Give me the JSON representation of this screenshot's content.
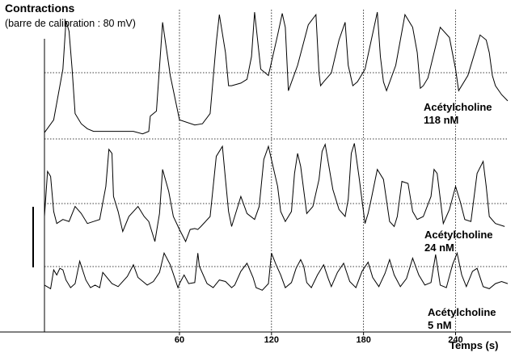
{
  "chart_data": {
    "type": "line",
    "title": "Contractions",
    "subtitle": "(barre de calibration : 80 mV)",
    "xlabel": "Temps (s)",
    "xlim": [
      -28,
      274
    ],
    "xticks": [
      60,
      120,
      180,
      240
    ],
    "grid": true,
    "series": [
      {
        "name": "Acétylcholine 118 nM",
        "label_lines": [
          "Acétylcholine",
          "118 nM"
        ],
        "x": [
          -28,
          -22,
          -16,
          -14,
          -12,
          -10,
          -8,
          -4,
          0,
          4,
          10,
          20,
          30,
          36,
          40,
          41,
          45,
          48,
          49,
          54,
          60,
          70,
          75,
          80,
          84,
          86,
          90,
          92,
          94,
          100,
          104,
          107,
          109,
          113,
          118,
          124,
          127,
          129,
          131,
          137,
          144,
          149,
          151,
          152,
          154,
          159,
          164,
          168,
          170,
          173,
          176,
          181,
          189,
          191,
          193,
          195,
          201,
          207,
          212,
          215,
          217,
          219,
          222,
          230,
          236,
          240,
          242,
          248,
          256,
          260,
          262,
          264,
          266,
          270,
          274
        ],
        "y": [
          0.05,
          0.15,
          0.55,
          0.93,
          0.85,
          0.55,
          0.2,
          0.12,
          0.08,
          0.06,
          0.06,
          0.06,
          0.06,
          0.04,
          0.06,
          0.18,
          0.22,
          0.74,
          0.92,
          0.5,
          0.15,
          0.11,
          0.12,
          0.2,
          0.76,
          0.98,
          0.68,
          0.42,
          0.42,
          0.44,
          0.47,
          0.65,
          1.0,
          0.55,
          0.5,
          0.82,
          0.99,
          0.88,
          0.38,
          0.58,
          0.9,
          0.98,
          0.52,
          0.42,
          0.45,
          0.52,
          0.78,
          0.92,
          0.58,
          0.42,
          0.45,
          0.55,
          1.0,
          0.65,
          0.45,
          0.38,
          0.58,
          0.98,
          0.88,
          0.68,
          0.4,
          0.42,
          0.48,
          0.88,
          0.8,
          0.55,
          0.38,
          0.5,
          0.82,
          0.78,
          0.68,
          0.5,
          0.42,
          0.35,
          0.3
        ]
      },
      {
        "name": "Acétylcholine 24 nM",
        "label_lines": [
          "Acétylcholine",
          "24 nM"
        ],
        "x": [
          -28,
          -26,
          -24,
          -22,
          -20,
          -16,
          -12,
          -8,
          -4,
          0,
          4,
          8,
          12,
          14,
          16,
          17,
          20,
          23,
          27,
          33,
          37,
          40,
          44,
          47,
          49,
          53,
          56,
          60,
          64,
          67,
          70,
          72,
          74,
          80,
          84,
          88,
          90,
          92,
          94,
          98,
          100,
          104,
          109,
          112,
          115,
          118,
          124,
          126,
          129,
          133,
          135,
          137,
          139,
          143,
          147,
          151,
          153,
          155,
          160,
          164,
          168,
          170,
          172,
          174,
          177,
          181,
          183,
          185,
          189,
          193,
          197,
          200,
          202,
          205,
          209,
          212,
          215,
          219,
          224,
          226,
          228,
          232,
          236,
          240,
          243,
          246,
          250,
          254,
          258,
          260,
          262,
          266,
          272
        ],
        "y": [
          0.25,
          0.7,
          0.65,
          0.3,
          0.18,
          0.22,
          0.2,
          0.35,
          0.28,
          0.18,
          0.2,
          0.22,
          0.55,
          0.92,
          0.88,
          0.45,
          0.3,
          0.1,
          0.25,
          0.35,
          0.25,
          0.2,
          0.0,
          0.28,
          0.72,
          0.5,
          0.25,
          0.12,
          0.0,
          0.12,
          0.13,
          0.12,
          0.15,
          0.25,
          0.85,
          0.95,
          0.62,
          0.3,
          0.15,
          0.35,
          0.45,
          0.28,
          0.22,
          0.35,
          0.82,
          0.95,
          0.55,
          0.3,
          0.2,
          0.3,
          0.68,
          0.88,
          0.75,
          0.28,
          0.35,
          0.62,
          0.9,
          0.97,
          0.52,
          0.32,
          0.25,
          0.42,
          0.88,
          0.98,
          0.65,
          0.18,
          0.28,
          0.42,
          0.72,
          0.62,
          0.2,
          0.15,
          0.25,
          0.6,
          0.58,
          0.3,
          0.22,
          0.25,
          0.45,
          0.72,
          0.68,
          0.18,
          0.32,
          0.55,
          0.4,
          0.22,
          0.2,
          0.68,
          0.8,
          0.55,
          0.25,
          0.18,
          0.15
        ]
      },
      {
        "name": "Acétylcholine 5 nM",
        "label_lines": [
          "Acétylcholine",
          "5 nM"
        ],
        "x": [
          -28,
          -24,
          -22,
          -20,
          -18,
          -16,
          -14,
          -11,
          -8,
          -5,
          -1,
          2,
          5,
          8,
          10,
          16,
          20,
          26,
          30,
          33,
          39,
          43,
          47,
          50,
          54,
          59,
          60,
          63,
          66,
          70,
          72,
          73,
          78,
          82,
          86,
          90,
          94,
          96,
          100,
          104,
          108,
          110,
          114,
          118,
          120,
          123,
          126,
          129,
          133,
          136,
          139,
          141,
          143,
          146,
          150,
          154,
          157,
          159,
          163,
          167,
          171,
          175,
          179,
          183,
          186,
          190,
          194,
          197,
          200,
          204,
          208,
          212,
          216,
          220,
          224,
          227,
          230,
          234,
          238,
          241,
          244,
          247,
          251,
          254,
          258,
          262,
          266,
          270,
          274
        ],
        "y": [
          0.35,
          0.28,
          0.65,
          0.55,
          0.68,
          0.65,
          0.45,
          0.3,
          0.38,
          0.82,
          0.45,
          0.3,
          0.35,
          0.3,
          0.6,
          0.38,
          0.32,
          0.52,
          0.75,
          0.5,
          0.35,
          0.42,
          0.6,
          0.98,
          0.75,
          0.3,
          0.38,
          0.55,
          0.38,
          0.4,
          0.98,
          0.72,
          0.38,
          0.3,
          0.45,
          0.42,
          0.3,
          0.35,
          0.62,
          0.78,
          0.5,
          0.3,
          0.25,
          0.38,
          0.98,
          0.75,
          0.55,
          0.3,
          0.4,
          0.68,
          0.85,
          0.72,
          0.4,
          0.3,
          0.55,
          0.75,
          0.48,
          0.32,
          0.6,
          0.78,
          0.42,
          0.3,
          0.62,
          0.8,
          0.5,
          0.32,
          0.58,
          0.85,
          0.55,
          0.32,
          0.48,
          0.88,
          0.55,
          0.35,
          0.4,
          0.95,
          0.35,
          0.3,
          0.75,
          0.98,
          0.55,
          0.32,
          0.62,
          0.68,
          0.32,
          0.28,
          0.38,
          0.42,
          0.38
        ]
      }
    ]
  }
}
